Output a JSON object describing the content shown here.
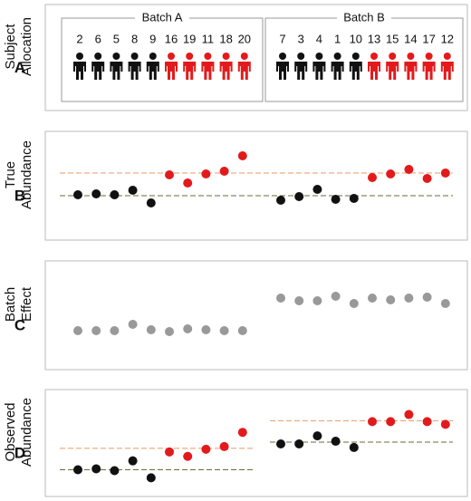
{
  "chart_data": [
    {
      "type": "pictogram",
      "letter": "A",
      "ylabel": [
        "Subject",
        "Allocation"
      ],
      "groups": [
        {
          "name": "Batch A",
          "subjects": [
            2,
            6,
            5,
            8,
            9,
            16,
            19,
            11,
            18,
            20
          ],
          "colors": [
            "#111111",
            "#111111",
            "#111111",
            "#111111",
            "#111111",
            "#e31a1c",
            "#e31a1c",
            "#e31a1c",
            "#e31a1c",
            "#e31a1c"
          ]
        },
        {
          "name": "Batch B",
          "subjects": [
            7,
            3,
            4,
            1,
            10,
            13,
            15,
            14,
            17,
            12
          ],
          "colors": [
            "#111111",
            "#111111",
            "#111111",
            "#111111",
            "#111111",
            "#e31a1c",
            "#e31a1c",
            "#e31a1c",
            "#e31a1c",
            "#e31a1c"
          ]
        }
      ]
    },
    {
      "type": "strip",
      "letter": "B",
      "ylabel": [
        "True",
        "Abundance"
      ],
      "ylim": [
        0,
        120
      ],
      "values": [
        50,
        51,
        50,
        55,
        41,
        72,
        63,
        73,
        76,
        93,
        44,
        48,
        56,
        45,
        46,
        69,
        73,
        78,
        68,
        74
      ],
      "colors": [
        "#111111",
        "#111111",
        "#111111",
        "#111111",
        "#111111",
        "#e31a1c",
        "#e31a1c",
        "#e31a1c",
        "#e31a1c",
        "#e31a1c",
        "#111111",
        "#111111",
        "#111111",
        "#111111",
        "#111111",
        "#e31a1c",
        "#e31a1c",
        "#e31a1c",
        "#e31a1c",
        "#e31a1c"
      ],
      "reference_lines": [
        {
          "color": "#e89a6a",
          "values": [
            74
          ]
        },
        {
          "color": "#6b6b3a",
          "values": [
            49
          ]
        }
      ]
    },
    {
      "type": "strip",
      "letter": "C",
      "ylabel": [
        "Batch",
        "Effect"
      ],
      "ylim": [
        0,
        120
      ],
      "values": [
        43,
        43,
        43,
        50,
        44,
        42,
        45,
        44,
        43,
        43,
        79,
        76,
        76,
        81,
        73,
        79,
        77,
        79,
        80,
        73
      ],
      "colors": [
        "#999999",
        "#999999",
        "#999999",
        "#999999",
        "#999999",
        "#999999",
        "#999999",
        "#999999",
        "#999999",
        "#999999",
        "#999999",
        "#999999",
        "#999999",
        "#999999",
        "#999999",
        "#999999",
        "#999999",
        "#999999",
        "#999999",
        "#999999"
      ],
      "reference_lines": []
    },
    {
      "type": "strip",
      "letter": "D",
      "ylabel": [
        "Observed",
        "Abundance"
      ],
      "ylim": [
        0,
        120
      ],
      "values": [
        30,
        31,
        29,
        40,
        21,
        50,
        45,
        53,
        56,
        72,
        59,
        59,
        68,
        62,
        55,
        84,
        84,
        92,
        84,
        81
      ],
      "colors": [
        "#111111",
        "#111111",
        "#111111",
        "#111111",
        "#111111",
        "#e31a1c",
        "#e31a1c",
        "#e31a1c",
        "#e31a1c",
        "#e31a1c",
        "#111111",
        "#111111",
        "#111111",
        "#111111",
        "#111111",
        "#e31a1c",
        "#e31a1c",
        "#e31a1c",
        "#e31a1c",
        "#e31a1c"
      ],
      "reference_lines": [
        {
          "color": "#e89a6a",
          "values": [
            54,
            85
          ]
        },
        {
          "color": "#6b6b3a",
          "values": [
            30,
            61
          ]
        }
      ]
    }
  ]
}
